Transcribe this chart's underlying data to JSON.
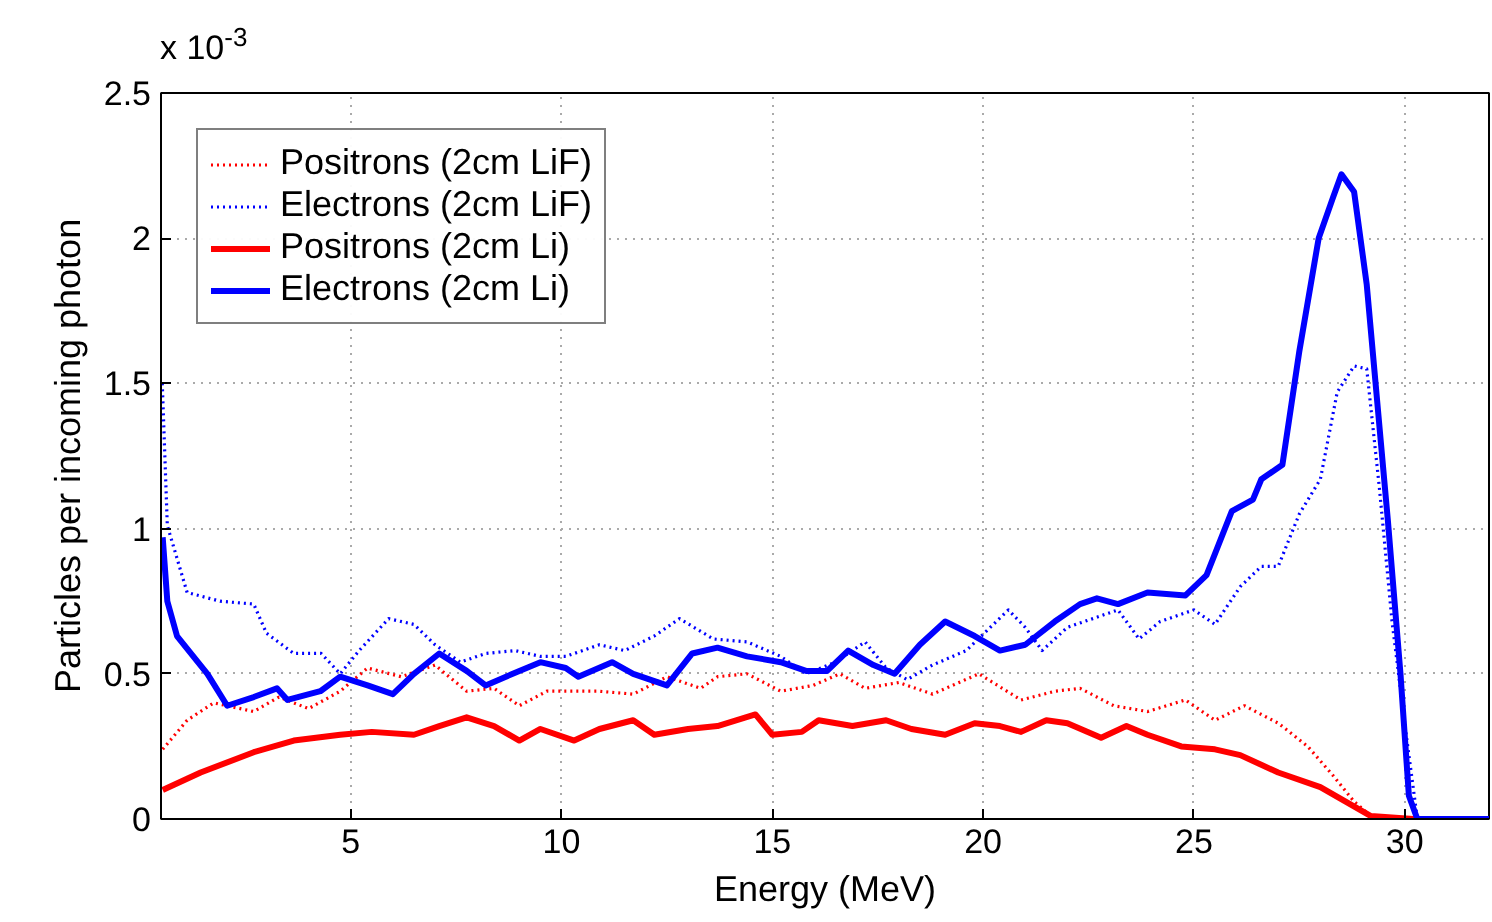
{
  "chart_data": {
    "type": "line",
    "xlabel": "Energy (MeV)",
    "ylabel": "Particles per incoming photon",
    "annotations": [
      "x 10$^{-3}$"
    ],
    "xlim": [
      0.5,
      32
    ],
    "ylim": [
      0,
      2.5
    ],
    "xticks": [
      5,
      10,
      15,
      20,
      25,
      30
    ],
    "yticks": [
      0,
      0.5,
      1,
      1.5,
      2,
      2.5
    ],
    "grid": true,
    "legend": "top left",
    "marker": "none",
    "series": [
      {
        "name": "Positrons (2cm LiF)",
        "color": "#ff0000",
        "line_style": "dotted",
        "x": [
          0.54,
          1.12,
          1.75,
          2.7,
          3.3,
          4.0,
          4.75,
          5.4,
          6.2,
          7.0,
          7.75,
          8.4,
          9.0,
          9.65,
          10.3,
          10.9,
          11.7,
          12.5,
          13.3,
          13.7,
          14.4,
          15.2,
          15.97,
          16.6,
          17.2,
          18.0,
          18.8,
          19.9,
          20.9,
          21.7,
          22.3,
          23.1,
          23.9,
          24.8,
          25.5,
          26.2,
          27.0,
          27.7,
          28.3,
          28.8,
          29.2,
          30.2,
          32.0
        ],
        "values": [
          0.24,
          0.34,
          0.4,
          0.37,
          0.42,
          0.38,
          0.44,
          0.52,
          0.49,
          0.53,
          0.44,
          0.45,
          0.39,
          0.44,
          0.44,
          0.44,
          0.43,
          0.49,
          0.45,
          0.49,
          0.5,
          0.44,
          0.46,
          0.5,
          0.45,
          0.47,
          0.43,
          0.5,
          0.41,
          0.44,
          0.45,
          0.39,
          0.37,
          0.41,
          0.34,
          0.39,
          0.33,
          0.25,
          0.15,
          0.06,
          0.01,
          0,
          0
        ]
      },
      {
        "name": "Electrons (2cm LiF)",
        "color": "#0000ff",
        "line_style": "dotted",
        "x": [
          0.53,
          0.65,
          1.12,
          1.9,
          2.7,
          3.0,
          3.65,
          4.3,
          4.75,
          5.2,
          5.9,
          6.5,
          7.0,
          7.6,
          8.2,
          8.9,
          9.5,
          10.1,
          10.9,
          11.5,
          12.2,
          12.8,
          13.6,
          14.4,
          15.2,
          15.8,
          16.5,
          17.2,
          17.7,
          18.2,
          18.8,
          19.6,
          20.6,
          21.0,
          21.4,
          22.0,
          22.6,
          23.2,
          23.7,
          24.2,
          25.0,
          25.5,
          26.1,
          26.6,
          27.0,
          27.5,
          28.0,
          28.4,
          28.8,
          29.1,
          29.4,
          29.7,
          30.0,
          30.3,
          32.0
        ],
        "values": [
          1.5,
          1.01,
          0.78,
          0.75,
          0.74,
          0.64,
          0.57,
          0.57,
          0.5,
          0.58,
          0.69,
          0.67,
          0.6,
          0.54,
          0.57,
          0.58,
          0.56,
          0.56,
          0.6,
          0.58,
          0.63,
          0.69,
          0.62,
          0.61,
          0.56,
          0.5,
          0.54,
          0.61,
          0.52,
          0.48,
          0.53,
          0.58,
          0.72,
          0.66,
          0.58,
          0.66,
          0.69,
          0.72,
          0.62,
          0.68,
          0.72,
          0.67,
          0.8,
          0.87,
          0.87,
          1.05,
          1.17,
          1.47,
          1.56,
          1.55,
          1.14,
          0.68,
          0.33,
          0,
          0
        ]
      },
      {
        "name": "Positrons (2cm Li)",
        "color": "#ff0000",
        "line_style": "solid",
        "x": [
          0.54,
          1.44,
          2.7,
          3.65,
          4.75,
          5.5,
          6.5,
          7.1,
          7.75,
          8.4,
          9.0,
          9.5,
          10.3,
          10.9,
          11.7,
          12.2,
          13.0,
          13.7,
          14.6,
          15.0,
          15.7,
          16.1,
          16.9,
          17.7,
          18.3,
          19.1,
          19.8,
          20.4,
          20.9,
          21.5,
          22.0,
          22.8,
          23.4,
          23.9,
          24.7,
          25.5,
          26.1,
          27.0,
          28.0,
          28.6,
          29.2,
          30.2,
          32.0
        ],
        "values": [
          0.1,
          0.16,
          0.23,
          0.27,
          0.29,
          0.3,
          0.29,
          0.32,
          0.35,
          0.32,
          0.27,
          0.31,
          0.27,
          0.31,
          0.34,
          0.29,
          0.31,
          0.32,
          0.36,
          0.29,
          0.3,
          0.34,
          0.32,
          0.34,
          0.31,
          0.29,
          0.33,
          0.32,
          0.3,
          0.34,
          0.33,
          0.28,
          0.32,
          0.29,
          0.25,
          0.24,
          0.22,
          0.16,
          0.11,
          0.06,
          0.01,
          0,
          0
        ]
      },
      {
        "name": "Electrons (2cm Li)",
        "color": "#0000ff",
        "line_style": "solid",
        "x": [
          0.54,
          0.65,
          0.88,
          1.6,
          2.07,
          2.7,
          3.25,
          3.5,
          4.28,
          4.75,
          5.4,
          6.0,
          6.5,
          7.1,
          7.75,
          8.2,
          9.0,
          9.5,
          10.1,
          10.4,
          11.2,
          11.7,
          12.5,
          13.1,
          13.7,
          14.4,
          15.2,
          15.8,
          16.3,
          16.8,
          17.4,
          17.9,
          18.5,
          19.1,
          19.8,
          20.4,
          21.0,
          21.7,
          22.3,
          22.7,
          23.2,
          23.9,
          24.8,
          25.3,
          25.6,
          25.9,
          26.4,
          26.6,
          27.1,
          27.5,
          27.96,
          28.3,
          28.5,
          28.8,
          29.1,
          29.6,
          29.9,
          30.1,
          30.3,
          32.0
        ],
        "values": [
          0.97,
          0.75,
          0.63,
          0.5,
          0.39,
          0.42,
          0.45,
          0.41,
          0.44,
          0.49,
          0.46,
          0.43,
          0.5,
          0.57,
          0.51,
          0.46,
          0.51,
          0.54,
          0.52,
          0.49,
          0.54,
          0.5,
          0.46,
          0.57,
          0.59,
          0.56,
          0.54,
          0.51,
          0.51,
          0.58,
          0.53,
          0.5,
          0.6,
          0.68,
          0.63,
          0.58,
          0.6,
          0.68,
          0.74,
          0.76,
          0.74,
          0.78,
          0.77,
          0.84,
          0.95,
          1.06,
          1.1,
          1.17,
          1.22,
          1.61,
          2.0,
          2.14,
          2.22,
          2.16,
          1.84,
          1.03,
          0.5,
          0.08,
          0,
          0
        ]
      }
    ]
  }
}
